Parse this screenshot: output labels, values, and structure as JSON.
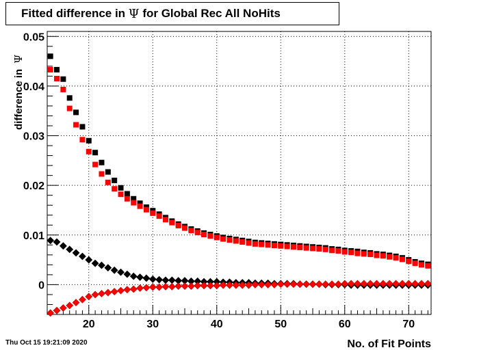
{
  "title": {
    "prefix": "Fitted difference in ",
    "symbol": "Ψ",
    "suffix": " for Global Rec All NoHits"
  },
  "footer": {
    "timestamp": "Thu Oct 15 19:21:09 2020"
  },
  "chart_data": {
    "type": "scatter",
    "title": "Fitted difference in Ψ for Global Rec All NoHits",
    "xlabel": "No. of Fit Points",
    "ylabel_text": "difference in",
    "ylabel_symbol": "Ψ",
    "xlim": [
      13.5,
      73.5
    ],
    "ylim": [
      -0.006,
      0.051
    ],
    "x_ticks": [
      20,
      30,
      40,
      50,
      60,
      70
    ],
    "y_ticks": [
      0,
      0.01,
      0.02,
      0.03,
      0.04,
      0.05
    ],
    "y_tick_labels": [
      "0",
      "0.01",
      "0.02",
      "0.03",
      "0.04",
      "0.05"
    ],
    "grid": true,
    "colors": {
      "black": "#000000",
      "red": "#ff0000",
      "red_edge": "#b00000"
    },
    "x": [
      14,
      15,
      16,
      17,
      18,
      19,
      20,
      21,
      22,
      23,
      24,
      25,
      26,
      27,
      28,
      29,
      30,
      31,
      32,
      33,
      34,
      35,
      36,
      37,
      38,
      39,
      40,
      41,
      42,
      43,
      44,
      45,
      46,
      47,
      48,
      49,
      50,
      51,
      52,
      53,
      54,
      55,
      56,
      57,
      58,
      59,
      60,
      61,
      62,
      63,
      64,
      65,
      66,
      67,
      68,
      69,
      70,
      71,
      72,
      73
    ],
    "series": [
      {
        "marker": "square",
        "color": "#000000",
        "values": [
          0.046,
          0.0433,
          0.0414,
          0.0376,
          0.0347,
          0.0318,
          0.029,
          0.0266,
          0.0246,
          0.0227,
          0.021,
          0.0195,
          0.0183,
          0.0173,
          0.0164,
          0.0156,
          0.0149,
          0.0142,
          0.0135,
          0.0128,
          0.0122,
          0.0117,
          0.0112,
          0.0108,
          0.0104,
          0.0101,
          0.0098,
          0.0095,
          0.0093,
          0.0091,
          0.0089,
          0.0087,
          0.0085,
          0.0084,
          0.0083,
          0.0082,
          0.0081,
          0.008,
          0.0079,
          0.0078,
          0.0077,
          0.0076,
          0.0075,
          0.0074,
          0.0072,
          0.0071,
          0.0069,
          0.0068,
          0.0067,
          0.0065,
          0.0064,
          0.0062,
          0.0061,
          0.0059,
          0.0057,
          0.0054,
          0.005,
          0.0046,
          0.0043,
          0.0041
        ]
      },
      {
        "marker": "square",
        "color": "#ff0000",
        "values": [
          0.0433,
          0.0415,
          0.0393,
          0.0355,
          0.0322,
          0.0292,
          0.0268,
          0.0242,
          0.0223,
          0.0206,
          0.0193,
          0.0182,
          0.0173,
          0.0165,
          0.0158,
          0.0151,
          0.0144,
          0.0138,
          0.0131,
          0.0125,
          0.0119,
          0.0114,
          0.0109,
          0.0105,
          0.0101,
          0.0098,
          0.0095,
          0.0092,
          0.009,
          0.0088,
          0.0086,
          0.0084,
          0.0082,
          0.0081,
          0.008,
          0.0079,
          0.0078,
          0.0077,
          0.0076,
          0.0075,
          0.0074,
          0.0073,
          0.0072,
          0.0071,
          0.0069,
          0.0068,
          0.0066,
          0.0065,
          0.0063,
          0.0062,
          0.0061,
          0.0059,
          0.0058,
          0.0056,
          0.0054,
          0.0051,
          0.0047,
          0.0043,
          0.004,
          0.0038
        ]
      },
      {
        "marker": "diamond",
        "color": "#000000",
        "values": [
          0.0089,
          0.0086,
          0.0078,
          0.0071,
          0.0064,
          0.0057,
          0.005,
          0.0043,
          0.0039,
          0.0034,
          0.0029,
          0.0025,
          0.0021,
          0.0017,
          0.0015,
          0.0013,
          0.0011,
          0.001,
          0.0009,
          0.0009,
          0.0008,
          0.0008,
          0.0007,
          0.0007,
          0.0006,
          0.0006,
          0.0006,
          0.0005,
          0.0005,
          0.0004,
          0.0004,
          0.0004,
          0.0003,
          0.0003,
          0.0003,
          0.0002,
          0.0002,
          0.0002,
          0.0002,
          0.0001,
          0.0001,
          0.0001,
          0.0001,
          0.0,
          0.0,
          0.0,
          0.0,
          -0.0001,
          -0.0001,
          -0.0001,
          -0.0001,
          -0.0001,
          -0.0001,
          -0.0001,
          -0.0001,
          -0.0001,
          -0.0001,
          -0.0001,
          -0.0001,
          -0.0001
        ]
      },
      {
        "marker": "diamond",
        "color": "#ff0000",
        "values": [
          -0.0057,
          -0.0052,
          -0.0047,
          -0.0042,
          -0.0036,
          -0.003,
          -0.0024,
          -0.002,
          -0.0018,
          -0.0016,
          -0.0014,
          -0.0012,
          -0.001,
          -0.0009,
          -0.0007,
          -0.0006,
          -0.0005,
          -0.0005,
          -0.0004,
          -0.0004,
          -0.0003,
          -0.0003,
          -0.0003,
          -0.0002,
          -0.0002,
          -0.0002,
          -0.0002,
          -0.0001,
          -0.0001,
          -0.0001,
          -0.0001,
          -0.0001,
          0.0,
          0.0,
          0.0,
          0.0,
          0.0001,
          0.0001,
          0.0001,
          0.0001,
          0.0001,
          0.0001,
          0.0001,
          0.0001,
          0.0001,
          0.0001,
          0.0002,
          0.0002,
          0.0002,
          0.0002,
          0.0002,
          0.0002,
          0.0002,
          0.0002,
          0.0002,
          0.0002,
          0.0002,
          0.0002,
          0.0002,
          0.0002
        ]
      }
    ]
  }
}
